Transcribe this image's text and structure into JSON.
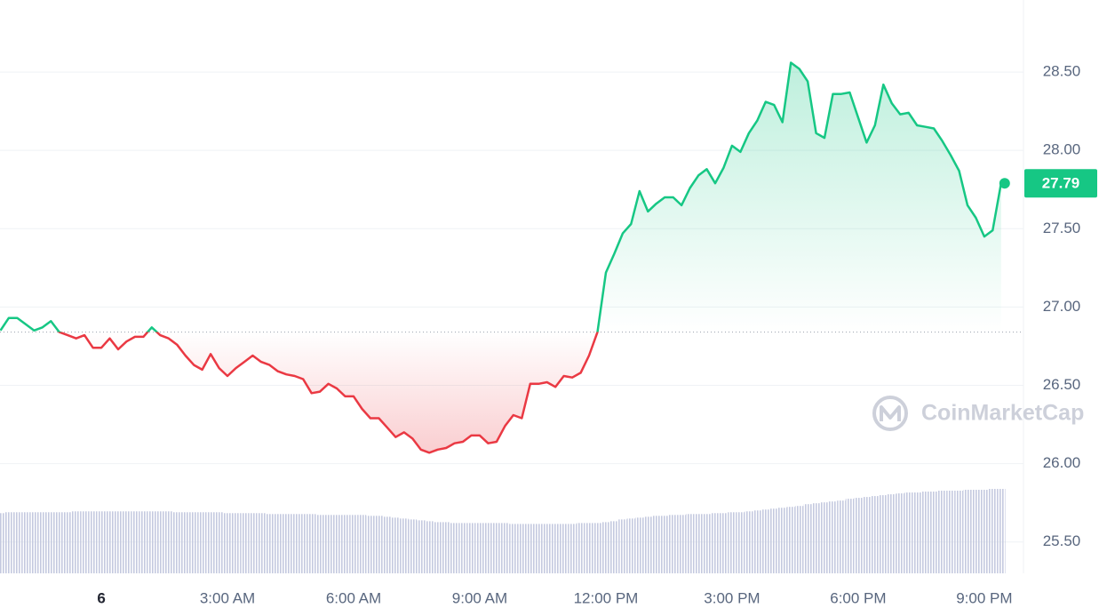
{
  "chart_data": {
    "type": "line",
    "x": [
      -2.4,
      -2.2,
      -2.0,
      -1.8,
      -1.6,
      -1.4,
      -1.2,
      -1.0,
      -0.8,
      -0.6,
      -0.4,
      -0.2,
      0,
      0.2,
      0.4,
      0.6,
      0.8,
      1.0,
      1.2,
      1.4,
      1.6,
      1.8,
      2.0,
      2.2,
      2.4,
      2.6,
      2.8,
      3.0,
      3.2,
      3.4,
      3.6,
      3.8,
      4.0,
      4.2,
      4.4,
      4.6,
      4.8,
      5.0,
      5.2,
      5.4,
      5.6,
      5.8,
      6.0,
      6.2,
      6.4,
      6.6,
      6.8,
      7.0,
      7.2,
      7.4,
      7.6,
      7.8,
      8.0,
      8.2,
      8.4,
      8.6,
      8.8,
      9.0,
      9.2,
      9.4,
      9.6,
      9.8,
      10.0,
      10.2,
      10.4,
      10.6,
      10.8,
      11.0,
      11.2,
      11.4,
      11.6,
      11.8,
      12.0,
      12.2,
      12.4,
      12.6,
      12.8,
      13.0,
      13.2,
      13.4,
      13.6,
      13.8,
      14.0,
      14.2,
      14.4,
      14.6,
      14.8,
      15.0,
      15.2,
      15.4,
      15.6,
      15.8,
      16.0,
      16.2,
      16.4,
      16.6,
      16.8,
      17.0,
      17.2,
      17.4,
      17.6,
      17.8,
      18.0,
      18.2,
      18.4,
      18.6,
      18.8,
      19.0,
      19.2,
      19.4,
      19.6,
      19.8,
      20.0,
      20.2,
      20.4,
      20.6,
      20.8,
      21.0,
      21.2,
      21.4
    ],
    "values": [
      26.85,
      26.93,
      26.93,
      26.89,
      26.85,
      26.87,
      26.91,
      26.84,
      26.82,
      26.8,
      26.82,
      26.74,
      26.74,
      26.8,
      26.73,
      26.78,
      26.81,
      26.81,
      26.87,
      26.82,
      26.8,
      26.76,
      26.69,
      26.63,
      26.6,
      26.7,
      26.61,
      26.56,
      26.61,
      26.65,
      26.69,
      26.65,
      26.63,
      26.59,
      26.57,
      26.56,
      26.54,
      26.45,
      26.46,
      26.51,
      26.48,
      26.43,
      26.43,
      26.35,
      26.29,
      26.29,
      26.23,
      26.17,
      26.2,
      26.16,
      26.09,
      26.07,
      26.09,
      26.1,
      26.13,
      26.14,
      26.18,
      26.18,
      26.13,
      26.14,
      26.24,
      26.31,
      26.29,
      26.51,
      26.51,
      26.52,
      26.49,
      26.56,
      26.55,
      26.58,
      26.69,
      26.84,
      27.22,
      27.34,
      27.47,
      27.53,
      27.74,
      27.61,
      27.66,
      27.7,
      27.7,
      27.65,
      27.76,
      27.84,
      27.88,
      27.79,
      27.89,
      28.03,
      27.99,
      28.11,
      28.19,
      28.31,
      28.29,
      28.18,
      28.56,
      28.52,
      28.44,
      28.11,
      28.08,
      28.36,
      28.36,
      28.37,
      28.21,
      28.05,
      28.16,
      28.42,
      28.3,
      28.23,
      28.24,
      28.16,
      28.15,
      28.14,
      28.06,
      27.97,
      27.87,
      27.65,
      27.57,
      27.45,
      27.49,
      27.79
    ],
    "volume": [
      67,
      68,
      68,
      68,
      68,
      68,
      68,
      68,
      68,
      69,
      69,
      69,
      69,
      69,
      69,
      69,
      69,
      69,
      69,
      69,
      69,
      68,
      68,
      68,
      68,
      68,
      68,
      67,
      67,
      67,
      67,
      67,
      66,
      66,
      66,
      66,
      66,
      66,
      65,
      65,
      65,
      65,
      65,
      65,
      64,
      64,
      63,
      62,
      61,
      60,
      59,
      58,
      57,
      57,
      56,
      56,
      56,
      56,
      56,
      56,
      56,
      55,
      55,
      55,
      55,
      55,
      55,
      55,
      55,
      56,
      56,
      56,
      57,
      58,
      60,
      61,
      62,
      63,
      64,
      64,
      65,
      65,
      66,
      66,
      66,
      67,
      67,
      68,
      68,
      69,
      70,
      71,
      72,
      73,
      74,
      75,
      77,
      78,
      79,
      80,
      81,
      83,
      84,
      85,
      86,
      87,
      88,
      89,
      90,
      90,
      91,
      91,
      92,
      92,
      92,
      93,
      93,
      93,
      94,
      94
    ],
    "baseline": 26.84,
    "up_color": "#16c784",
    "down_color": "#ea3943",
    "xlim": [
      -2.41,
      21.89
    ],
    "xticks": [
      {
        "value": 0,
        "label": "6"
      },
      {
        "value": 3,
        "label": "3:00 AM"
      },
      {
        "value": 6,
        "label": "6:00 AM"
      },
      {
        "value": 9,
        "label": "9:00 AM"
      },
      {
        "value": 12,
        "label": "12:00 PM"
      },
      {
        "value": 15,
        "label": "3:00 PM"
      },
      {
        "value": 18,
        "label": "6:00 PM"
      },
      {
        "value": 21,
        "label": "9:00 PM"
      }
    ],
    "ylim": [
      25.3,
      28.96
    ],
    "yticks": [
      {
        "value": 25.5,
        "label": "25.50"
      },
      {
        "value": 26,
        "label": "26.00"
      },
      {
        "value": 26.5,
        "label": "26.50"
      },
      {
        "value": 27,
        "label": "27.00"
      },
      {
        "value": 27.5,
        "label": "27.50"
      },
      {
        "value": 28,
        "label": "28.00"
      },
      {
        "value": 28.5,
        "label": "28.50"
      }
    ],
    "grid": true,
    "watermark": "CoinMarketCap"
  }
}
